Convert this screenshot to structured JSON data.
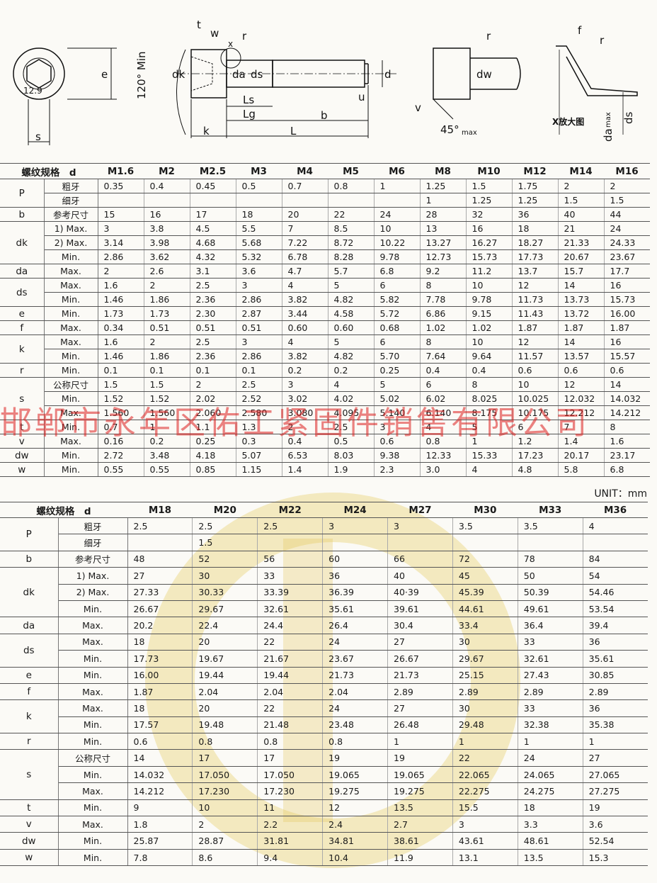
{
  "diagram": {
    "labels": [
      "e",
      "s",
      "12.9",
      "120° Min",
      "t",
      "w",
      "r",
      "x",
      "dk",
      "da",
      "ds",
      "d",
      "u",
      "Ls",
      "Lg",
      "b",
      "k",
      "L",
      "r",
      "dw",
      "v",
      "45°",
      "max",
      "f",
      "r",
      "X放大图",
      "da",
      "max",
      "ds"
    ]
  },
  "watermark": "邯郸市永年区佑工紧固件销售有限公司",
  "unit": "UNIT：mm",
  "tables": [
    {
      "header": {
        "label": "螺纹规格　d",
        "sizes": [
          "M1.6",
          "M2",
          "M2.5",
          "M3",
          "M4",
          "M5",
          "M6",
          "M8",
          "M10",
          "M12",
          "M14",
          "M16"
        ]
      },
      "groups": [
        {
          "param": "P",
          "rows": [
            {
              "sub": "粗牙",
              "values": [
                "0.35",
                "0.4",
                "0.45",
                "0.5",
                "0.7",
                "0.8",
                "1",
                "1.25",
                "1.5",
                "1.75",
                "2",
                "2"
              ]
            },
            {
              "sub": "细牙",
              "values": [
                null,
                null,
                null,
                null,
                null,
                null,
                null,
                "1",
                "1.25",
                "1.25",
                "1.5",
                "1.5"
              ]
            }
          ]
        },
        {
          "param": "b",
          "rows": [
            {
              "sub": "参考尺寸",
              "values": [
                "15",
                "16",
                "17",
                "18",
                "20",
                "22",
                "24",
                "28",
                "32",
                "36",
                "40",
                "44"
              ]
            }
          ]
        },
        {
          "param": "dk",
          "rows": [
            {
              "sub": "1) Max.",
              "values": [
                "3",
                "3.8",
                "4.5",
                "5.5",
                "7",
                "8.5",
                "10",
                "13",
                "16",
                "18",
                "21",
                "24"
              ]
            },
            {
              "sub": "2) Max.",
              "values": [
                "3.14",
                "3.98",
                "4.68",
                "5.68",
                "7.22",
                "8.72",
                "10.22",
                "13.27",
                "16.27",
                "18.27",
                "21.33",
                "24.33"
              ]
            },
            {
              "sub": "Min.",
              "values": [
                "2.86",
                "3.62",
                "4.32",
                "5.32",
                "6.78",
                "8.28",
                "9.78",
                "12.73",
                "15.73",
                "17.73",
                "20.67",
                "23.67"
              ]
            }
          ]
        },
        {
          "param": "da",
          "rows": [
            {
              "sub": "Max.",
              "values": [
                "2",
                "2.6",
                "3.1",
                "3.6",
                "4.7",
                "5.7",
                "6.8",
                "9.2",
                "11.2",
                "13.7",
                "15.7",
                "17.7"
              ]
            }
          ]
        },
        {
          "param": "ds",
          "rows": [
            {
              "sub": "Max.",
              "values": [
                "1.6",
                "2",
                "2.5",
                "3",
                "4",
                "5",
                "6",
                "8",
                "10",
                "12",
                "14",
                "16"
              ]
            },
            {
              "sub": "Min.",
              "values": [
                "1.46",
                "1.86",
                "2.36",
                "2.86",
                "3.82",
                "4.82",
                "5.82",
                "7.78",
                "9.78",
                "11.73",
                "13.73",
                "15.73"
              ]
            }
          ]
        },
        {
          "param": "e",
          "rows": [
            {
              "sub": "Min.",
              "values": [
                "1.73",
                "1.73",
                "2.30",
                "2.87",
                "3.44",
                "4.58",
                "5.72",
                "6.86",
                "9.15",
                "11.43",
                "13.72",
                "16.00"
              ]
            }
          ]
        },
        {
          "param": "f",
          "rows": [
            {
              "sub": "Max.",
              "values": [
                "0.34",
                "0.51",
                "0.51",
                "0.51",
                "0.60",
                "0.60",
                "0.68",
                "1.02",
                "1.02",
                "1.87",
                "1.87",
                "1.87"
              ]
            }
          ]
        },
        {
          "param": "k",
          "rows": [
            {
              "sub": "Max.",
              "values": [
                "1.6",
                "2",
                "2.5",
                "3",
                "4",
                "5",
                "6",
                "8",
                "10",
                "12",
                "14",
                "16"
              ]
            },
            {
              "sub": "Min.",
              "values": [
                "1.46",
                "1.86",
                "2.36",
                "2.86",
                "3.82",
                "4.82",
                "5.70",
                "7.64",
                "9.64",
                "11.57",
                "13.57",
                "15.57"
              ]
            }
          ]
        },
        {
          "param": "r",
          "rows": [
            {
              "sub": "Min.",
              "values": [
                "0.1",
                "0.1",
                "0.1",
                "0.1",
                "0.2",
                "0.2",
                "0.25",
                "0.4",
                "0.4",
                "0.6",
                "0.6",
                "0.6"
              ]
            }
          ]
        },
        {
          "param": "s",
          "rows": [
            {
              "sub": "公称尺寸",
              "values": [
                "1.5",
                "1.5",
                "2",
                "2.5",
                "3",
                "4",
                "5",
                "6",
                "8",
                "10",
                "12",
                "14"
              ]
            },
            {
              "sub": "Min.",
              "values": [
                "1.52",
                "1.52",
                "2.02",
                "2.52",
                "3.02",
                "4.02",
                "5.02",
                "6.02",
                "8.025",
                "10.025",
                "12.032",
                "14.032"
              ]
            },
            {
              "sub": "Max.",
              "values": [
                "1.560",
                "1.560",
                "2.060",
                "2.580",
                "3.080",
                "4.095",
                "5.140",
                "6.140",
                "8.175",
                "10.175",
                "12.212",
                "14.212"
              ]
            }
          ]
        },
        {
          "param": "t",
          "rows": [
            {
              "sub": "Min.",
              "values": [
                "0.7",
                "1",
                "1.1",
                "1.3",
                "2",
                "2.5",
                "3",
                "4",
                "5",
                "6",
                "7",
                "8"
              ]
            }
          ]
        },
        {
          "param": "v",
          "rows": [
            {
              "sub": "Max.",
              "values": [
                "0.16",
                "0.2",
                "0.25",
                "0.3",
                "0.4",
                "0.5",
                "0.6",
                "0.8",
                "1",
                "1.2",
                "1.4",
                "1.6"
              ]
            }
          ]
        },
        {
          "param": "dw",
          "rows": [
            {
              "sub": "Min.",
              "values": [
                "2.72",
                "3.48",
                "4.18",
                "5.07",
                "6.53",
                "8.03",
                "9.38",
                "12.33",
                "15.33",
                "17.23",
                "20.17",
                "23.17"
              ]
            }
          ]
        },
        {
          "param": "w",
          "rows": [
            {
              "sub": "Min.",
              "values": [
                "0.55",
                "0.55",
                "0.85",
                "1.15",
                "1.4",
                "1.9",
                "2.3",
                "3.0",
                "4",
                "4.8",
                "5.8",
                "6.8"
              ]
            }
          ]
        }
      ]
    },
    {
      "header": {
        "label": "螺纹规格　d",
        "sizes": [
          "M18",
          "M20",
          "M22",
          "M24",
          "M27",
          "M30",
          "M33",
          "M36"
        ]
      },
      "groups": [
        {
          "param": "P",
          "rows": [
            {
              "sub": "粗牙",
              "values": [
                "2.5",
                "2.5",
                "2.5",
                "3",
                "3",
                "3.5",
                "3.5",
                "4"
              ]
            },
            {
              "sub": "细牙",
              "values": [
                null,
                "1.5",
                null,
                null,
                null,
                null,
                null,
                null
              ]
            }
          ]
        },
        {
          "param": "b",
          "rows": [
            {
              "sub": "参考尺寸",
              "values": [
                "48",
                "52",
                "56",
                "60",
                "66",
                "72",
                "78",
                "84"
              ]
            }
          ]
        },
        {
          "param": "dk",
          "rows": [
            {
              "sub": "1) Max.",
              "values": [
                "27",
                "30",
                "33",
                "36",
                "40",
                "45",
                "50",
                "54"
              ]
            },
            {
              "sub": "2) Max.",
              "values": [
                "27.33",
                "30.33",
                "33.39",
                "36.39",
                "40·39",
                "45.39",
                "50.39",
                "54.46"
              ]
            },
            {
              "sub": "Min.",
              "values": [
                "26.67",
                "29.67",
                "32.61",
                "35.61",
                "39.61",
                "44.61",
                "49.61",
                "53.54"
              ]
            }
          ]
        },
        {
          "param": "da",
          "rows": [
            {
              "sub": "Max.",
              "values": [
                "20.2",
                "22.4",
                "24.4",
                "26.4",
                "30.4",
                "33.4",
                "36.4",
                "39.4"
              ]
            }
          ]
        },
        {
          "param": "ds",
          "rows": [
            {
              "sub": "Max.",
              "values": [
                "18",
                "20",
                "22",
                "24",
                "27",
                "30",
                "33",
                "36"
              ]
            },
            {
              "sub": "Min.",
              "values": [
                "17.73",
                "19.67",
                "21.67",
                "23.67",
                "26.67",
                "29.67",
                "32.61",
                "35.61"
              ]
            }
          ]
        },
        {
          "param": "e",
          "rows": [
            {
              "sub": "Min.",
              "values": [
                "16.00",
                "19.44",
                "19.44",
                "21.73",
                "21.73",
                "25.15",
                "27.43",
                "30.85"
              ]
            }
          ]
        },
        {
          "param": "f",
          "rows": [
            {
              "sub": "Max.",
              "values": [
                "1.87",
                "2.04",
                "2.04",
                "2.04",
                "2.89",
                "2.89",
                "2.89",
                "2.89"
              ]
            }
          ]
        },
        {
          "param": "k",
          "rows": [
            {
              "sub": "Max.",
              "values": [
                "18",
                "20",
                "22",
                "24",
                "27",
                "30",
                "33",
                "36"
              ]
            },
            {
              "sub": "Min.",
              "values": [
                "17.57",
                "19.48",
                "21.48",
                "23.48",
                "26.48",
                "29.48",
                "32.38",
                "35.38"
              ]
            }
          ]
        },
        {
          "param": "r",
          "rows": [
            {
              "sub": "Min.",
              "values": [
                "0.6",
                "0.8",
                "0.8",
                "0.8",
                "1",
                "1",
                "1",
                "1"
              ]
            }
          ]
        },
        {
          "param": "s",
          "rows": [
            {
              "sub": "公称尺寸",
              "values": [
                "14",
                "17",
                "17",
                "19",
                "19",
                "22",
                "24",
                "27"
              ]
            },
            {
              "sub": "Min.",
              "values": [
                "14.032",
                "17.050",
                "17.050",
                "19.065",
                "19.065",
                "22.065",
                "24.065",
                "27.065"
              ]
            },
            {
              "sub": "Max.",
              "values": [
                "14.212",
                "17.230",
                "17.230",
                "19.275",
                "19.275",
                "22.275",
                "24.275",
                "27.275"
              ]
            }
          ]
        },
        {
          "param": "t",
          "rows": [
            {
              "sub": "Min.",
              "values": [
                "9",
                "10",
                "11",
                "12",
                "13.5",
                "15.5",
                "18",
                "19"
              ]
            }
          ]
        },
        {
          "param": "v",
          "rows": [
            {
              "sub": "Max.",
              "values": [
                "1.8",
                "2",
                "2.2",
                "2.4",
                "2.7",
                "3",
                "3.3",
                "3.6"
              ]
            }
          ]
        },
        {
          "param": "dw",
          "rows": [
            {
              "sub": "Min.",
              "values": [
                "25.87",
                "28.87",
                "31.81",
                "34.81",
                "38.61",
                "43.61",
                "48.61",
                "52.54"
              ]
            }
          ]
        },
        {
          "param": "w",
          "rows": [
            {
              "sub": "Min.",
              "values": [
                "7.8",
                "8.6",
                "9.4",
                "10.4",
                "11.9",
                "13.1",
                "13.5",
                "15.3"
              ]
            }
          ]
        }
      ]
    }
  ]
}
